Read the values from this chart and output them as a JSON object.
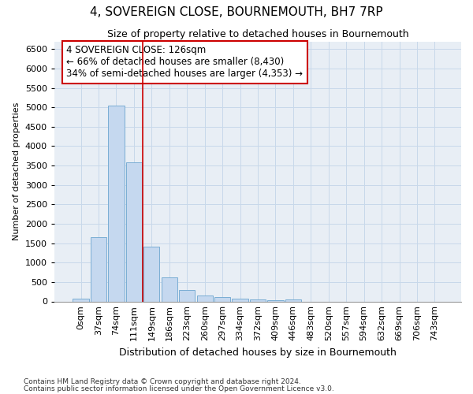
{
  "title": "4, SOVEREIGN CLOSE, BOURNEMOUTH, BH7 7RP",
  "subtitle": "Size of property relative to detached houses in Bournemouth",
  "xlabel": "Distribution of detached houses by size in Bournemouth",
  "ylabel": "Number of detached properties",
  "footer_line1": "Contains HM Land Registry data © Crown copyright and database right 2024.",
  "footer_line2": "Contains public sector information licensed under the Open Government Licence v3.0.",
  "bar_labels": [
    "0sqm",
    "37sqm",
    "74sqm",
    "111sqm",
    "149sqm",
    "186sqm",
    "223sqm",
    "260sqm",
    "297sqm",
    "334sqm",
    "372sqm",
    "409sqm",
    "446sqm",
    "483sqm",
    "520sqm",
    "557sqm",
    "594sqm",
    "632sqm",
    "669sqm",
    "706sqm",
    "743sqm"
  ],
  "bar_values": [
    75,
    1650,
    5050,
    3580,
    1420,
    615,
    295,
    145,
    110,
    75,
    55,
    40,
    50,
    0,
    0,
    0,
    0,
    0,
    0,
    0,
    0
  ],
  "bar_color": "#c5d8ef",
  "bar_edge_color": "#7aadd4",
  "ylim": [
    0,
    6700
  ],
  "yticks": [
    0,
    500,
    1000,
    1500,
    2000,
    2500,
    3000,
    3500,
    4000,
    4500,
    5000,
    5500,
    6000,
    6500
  ],
  "vline_x": 3.5,
  "vline_color": "#cc0000",
  "annotation_text_line1": "4 SOVEREIGN CLOSE: 126sqm",
  "annotation_text_line2": "← 66% of detached houses are smaller (8,430)",
  "annotation_text_line3": "34% of semi-detached houses are larger (4,353) →",
  "annotation_box_color": "#ffffff",
  "annotation_box_edge_color": "#cc0000",
  "grid_color": "#c8d8ea",
  "bg_color": "#e8eef5",
  "title_fontsize": 11,
  "subtitle_fontsize": 9,
  "ylabel_fontsize": 8,
  "xlabel_fontsize": 9,
  "annotation_fontsize": 8.5,
  "tick_fontsize": 8
}
